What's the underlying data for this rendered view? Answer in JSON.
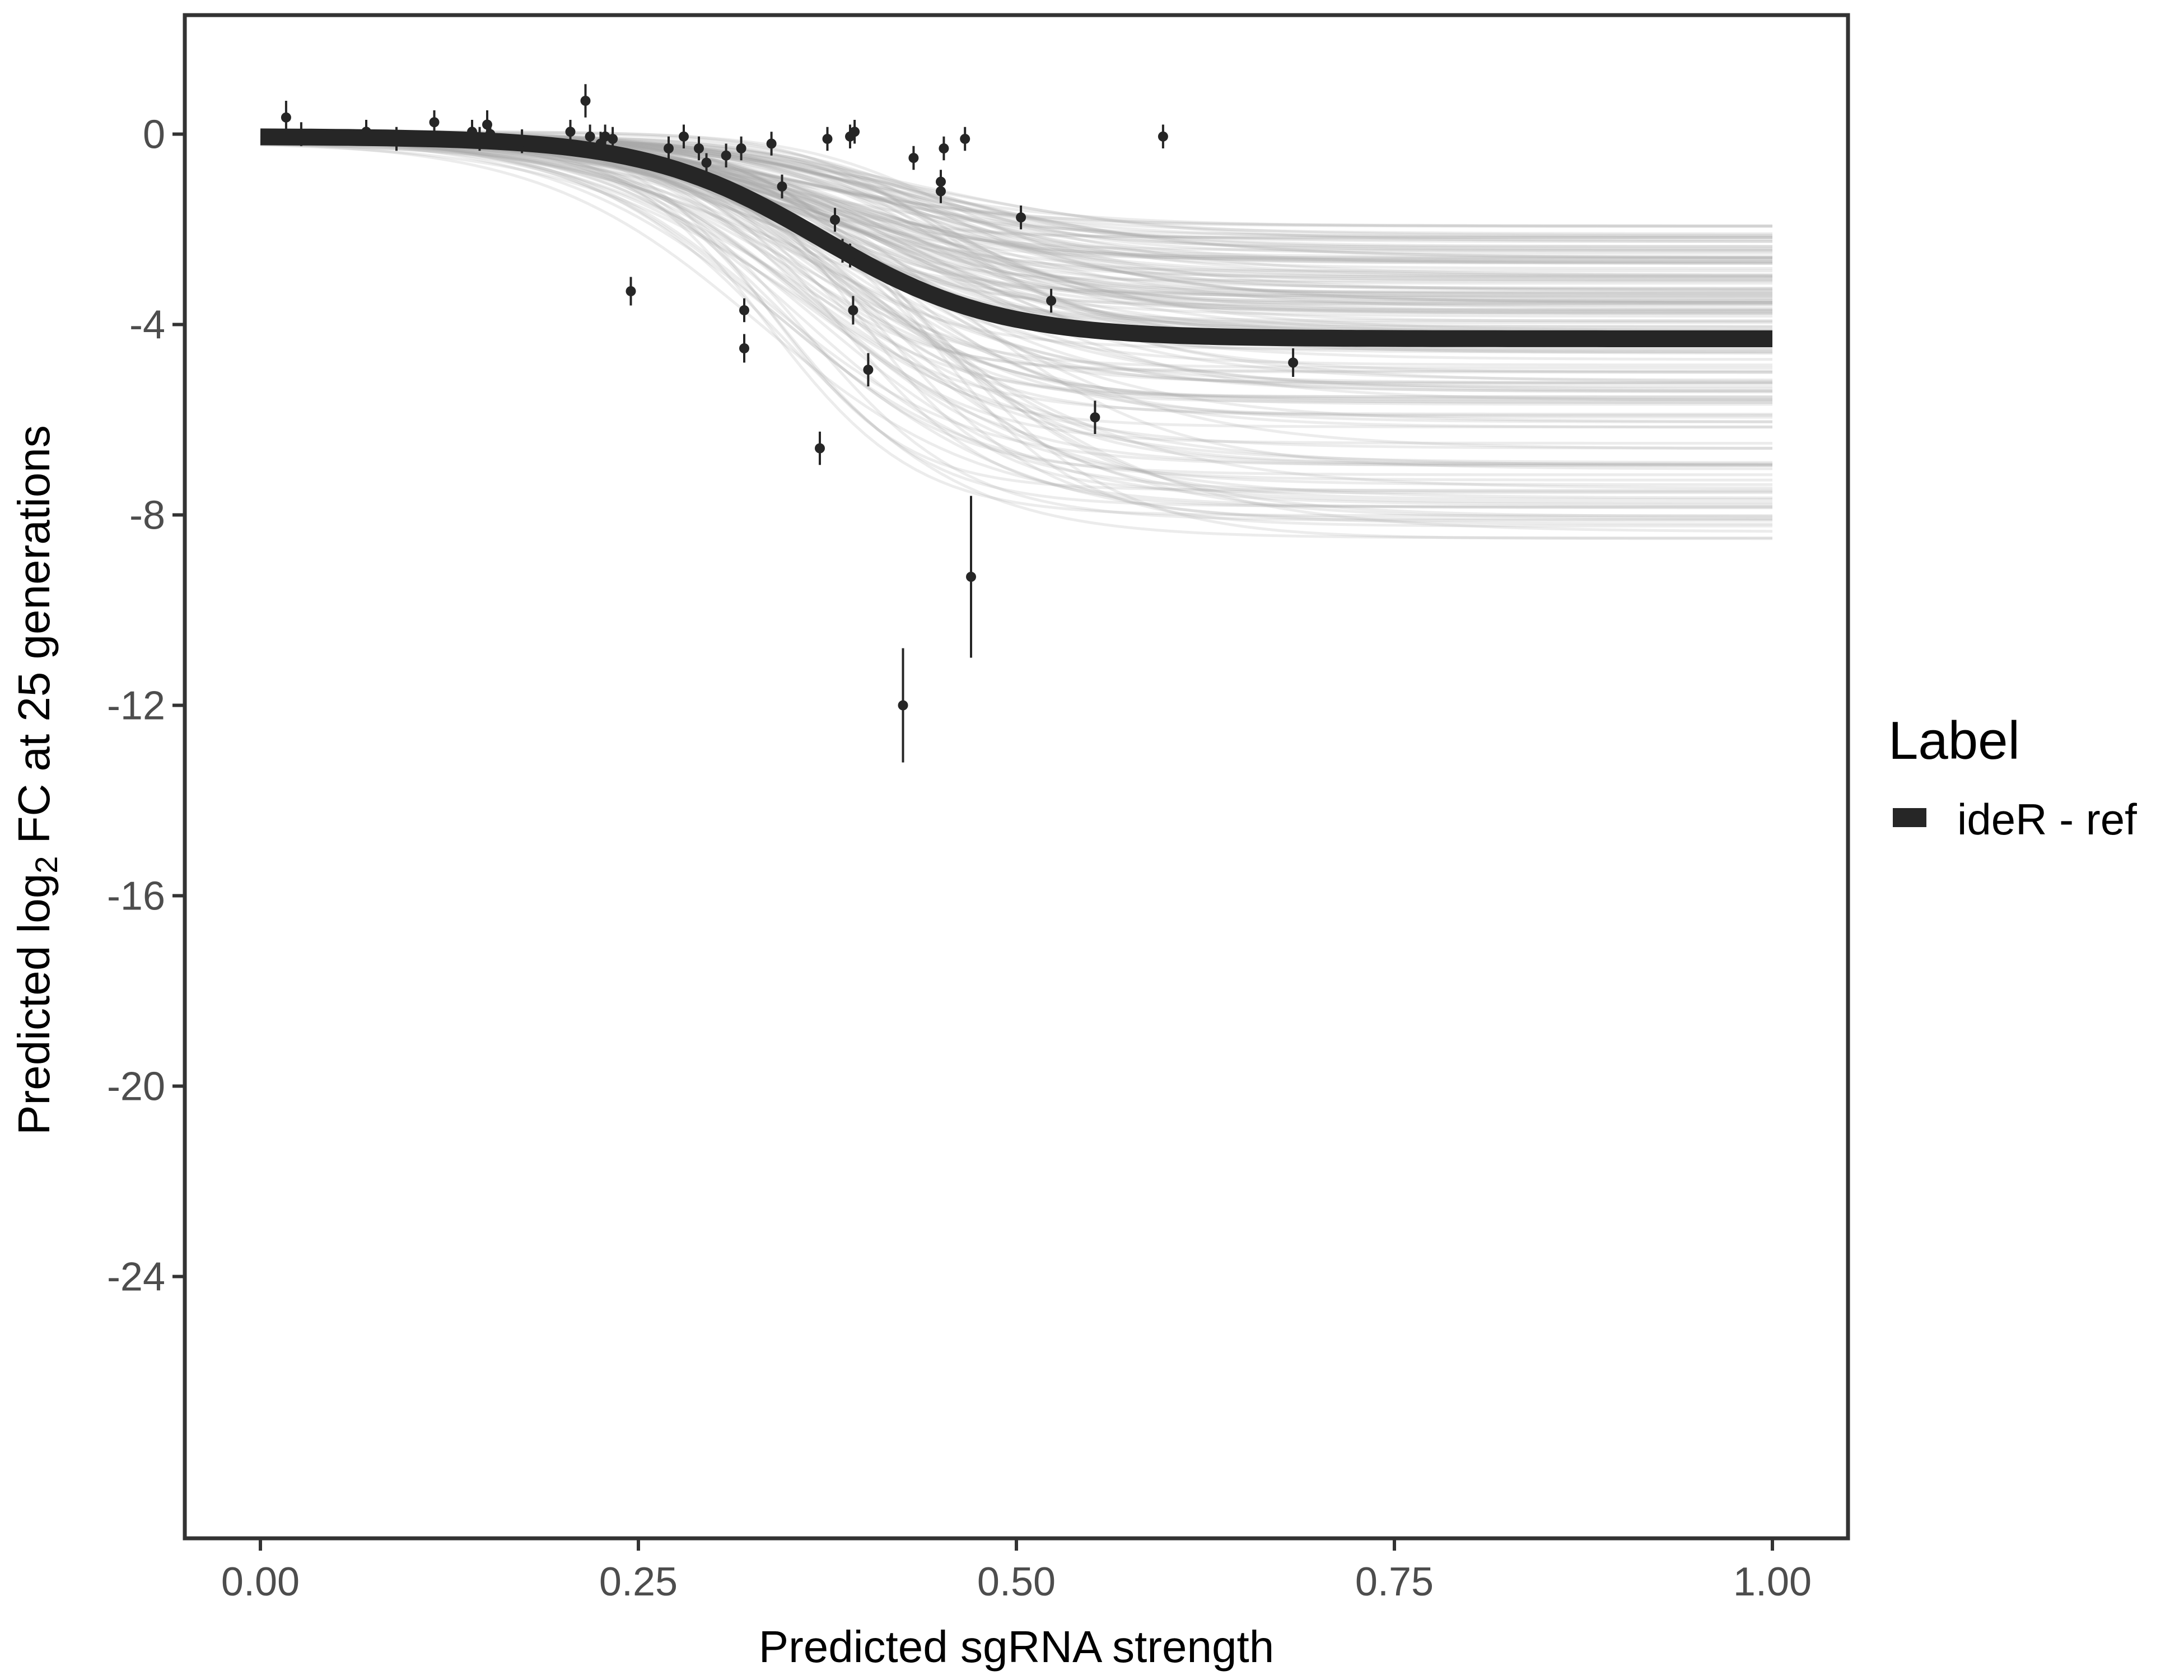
{
  "chart_data": {
    "type": "line",
    "xlabel": "Predicted sgRNA strength",
    "ylabel": {
      "prefix": "Predicted  log",
      "subscript": "2",
      "suffix": " FC at 25 generations"
    },
    "xlim": [
      -0.05,
      1.05
    ],
    "ylim": [
      -29.5,
      2.5
    ],
    "x_ticks": [
      0,
      0.25,
      0.5,
      0.75,
      1
    ],
    "x_tick_labels": [
      "0.00",
      "0.25",
      "0.50",
      "0.75",
      "1.00"
    ],
    "y_ticks": [
      0,
      -4,
      -8,
      -12,
      -16,
      -20,
      -24
    ],
    "y_tick_labels": [
      "0",
      "-4",
      "-8",
      "-12",
      "-16",
      "-20",
      "-24"
    ],
    "grid": false,
    "legend": {
      "title": "Label",
      "position": "right",
      "entries": [
        "ideR - ref"
      ]
    },
    "fit": {
      "name": "ideR - ref",
      "color": "#262626",
      "model": "logistic",
      "upper": -0.05,
      "lower": -4.3,
      "midpoint": 0.37,
      "scale": 0.058
    },
    "posterior_draws": {
      "color": "#a9a9a9",
      "count": 160,
      "lower_range": [
        -8.5,
        -1.9
      ],
      "midpoint_range": [
        0.33,
        0.46
      ],
      "scale_range": [
        0.045,
        0.09
      ]
    },
    "points": [
      {
        "x": 0.017,
        "y": 0.35,
        "err": 0.35
      },
      {
        "x": 0.027,
        "y": 0.0,
        "err": 0.25
      },
      {
        "x": 0.07,
        "y": 0.05,
        "err": 0.25
      },
      {
        "x": 0.09,
        "y": -0.1,
        "err": 0.25
      },
      {
        "x": 0.115,
        "y": 0.25,
        "err": 0.25
      },
      {
        "x": 0.14,
        "y": 0.05,
        "err": 0.25
      },
      {
        "x": 0.145,
        "y": -0.1,
        "err": 0.25
      },
      {
        "x": 0.15,
        "y": 0.2,
        "err": 0.3
      },
      {
        "x": 0.152,
        "y": 0.0,
        "err": 0.25
      },
      {
        "x": 0.173,
        "y": -0.15,
        "err": 0.25
      },
      {
        "x": 0.205,
        "y": 0.05,
        "err": 0.25
      },
      {
        "x": 0.215,
        "y": 0.7,
        "err": 0.35
      },
      {
        "x": 0.218,
        "y": -0.05,
        "err": 0.25
      },
      {
        "x": 0.225,
        "y": -0.2,
        "err": 0.25
      },
      {
        "x": 0.228,
        "y": -0.05,
        "err": 0.25
      },
      {
        "x": 0.233,
        "y": -0.1,
        "err": 0.25
      },
      {
        "x": 0.245,
        "y": -3.3,
        "err": 0.3
      },
      {
        "x": 0.27,
        "y": -0.3,
        "err": 0.25
      },
      {
        "x": 0.28,
        "y": -0.05,
        "err": 0.25
      },
      {
        "x": 0.29,
        "y": -0.3,
        "err": 0.25
      },
      {
        "x": 0.295,
        "y": -0.6,
        "err": 0.2
      },
      {
        "x": 0.308,
        "y": -0.45,
        "err": 0.25
      },
      {
        "x": 0.318,
        "y": -0.3,
        "err": 0.25
      },
      {
        "x": 0.32,
        "y": -3.7,
        "err": 0.25
      },
      {
        "x": 0.32,
        "y": -4.5,
        "err": 0.3
      },
      {
        "x": 0.338,
        "y": -0.2,
        "err": 0.25
      },
      {
        "x": 0.345,
        "y": -1.1,
        "err": 0.25
      },
      {
        "x": 0.37,
        "y": -6.6,
        "err": 0.35
      },
      {
        "x": 0.375,
        "y": -0.1,
        "err": 0.25
      },
      {
        "x": 0.38,
        "y": -1.8,
        "err": 0.25
      },
      {
        "x": 0.385,
        "y": -2.45,
        "err": 0.25
      },
      {
        "x": 0.39,
        "y": -2.55,
        "err": 0.25
      },
      {
        "x": 0.39,
        "y": -0.05,
        "err": 0.25
      },
      {
        "x": 0.393,
        "y": 0.05,
        "err": 0.25
      },
      {
        "x": 0.392,
        "y": -3.7,
        "err": 0.3
      },
      {
        "x": 0.402,
        "y": -4.95,
        "err": 0.35
      },
      {
        "x": 0.425,
        "y": -12.0,
        "err": 1.2
      },
      {
        "x": 0.432,
        "y": -0.5,
        "err": 0.25
      },
      {
        "x": 0.45,
        "y": -1.0,
        "err": 0.25
      },
      {
        "x": 0.45,
        "y": -1.2,
        "err": 0.25
      },
      {
        "x": 0.452,
        "y": -0.3,
        "err": 0.25
      },
      {
        "x": 0.466,
        "y": -0.1,
        "err": 0.25
      },
      {
        "x": 0.47,
        "y": -9.3,
        "err": 1.7
      },
      {
        "x": 0.503,
        "y": -1.75,
        "err": 0.25
      },
      {
        "x": 0.523,
        "y": -3.5,
        "err": 0.25
      },
      {
        "x": 0.552,
        "y": -5.95,
        "err": 0.35
      },
      {
        "x": 0.597,
        "y": -0.05,
        "err": 0.25
      },
      {
        "x": 0.683,
        "y": -4.8,
        "err": 0.3
      }
    ]
  }
}
